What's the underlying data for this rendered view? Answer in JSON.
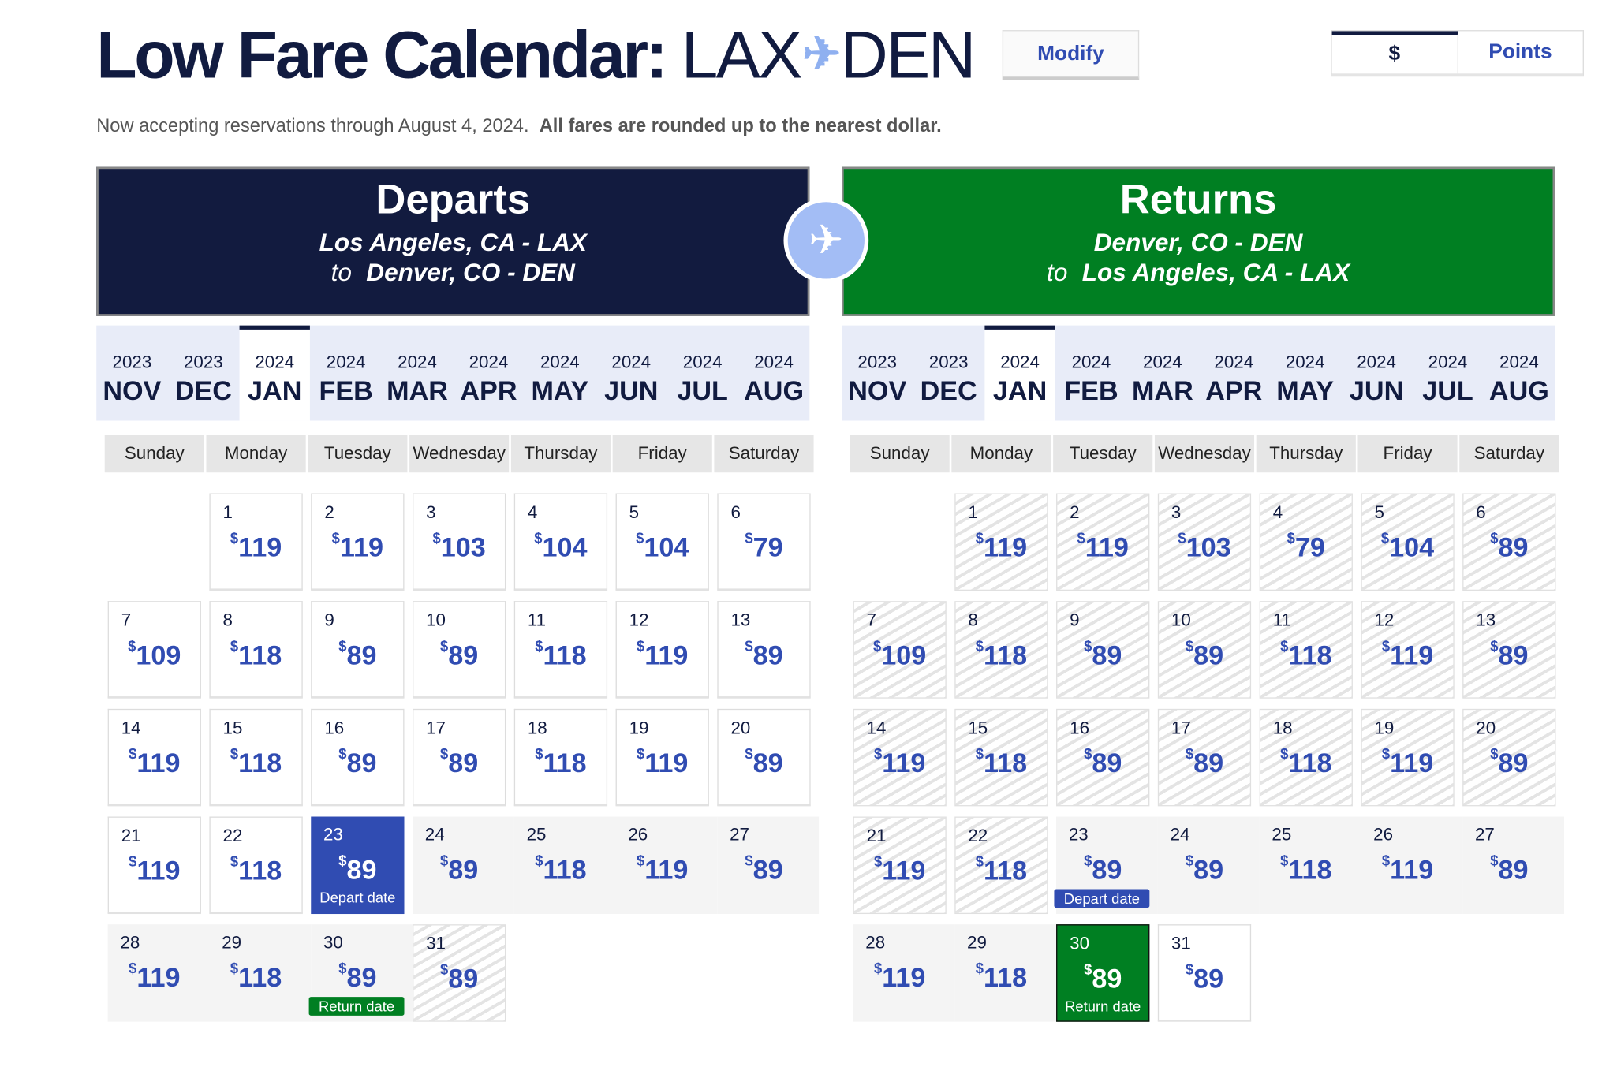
{
  "header": {
    "title": "Low Fare Calendar:",
    "origin": "LAX",
    "destination": "DEN",
    "plane_icon": "airplane-icon",
    "modify_label": "Modify"
  },
  "currency_toggle": {
    "dollar_label": "$",
    "points_label": "Points",
    "selected": "$"
  },
  "notice": {
    "text": "Now accepting reservations through August 4, 2024.",
    "bold": "All fares are rounded up to the nearest dollar."
  },
  "colors": {
    "navy": "#121b3f",
    "green": "#007f22",
    "blue": "#304cb2",
    "light_blue": "#a3bdf5"
  },
  "weekdays": [
    "Sunday",
    "Monday",
    "Tuesday",
    "Wednesday",
    "Thursday",
    "Friday",
    "Saturday"
  ],
  "months": [
    {
      "year": "2023",
      "month": "NOV"
    },
    {
      "year": "2023",
      "month": "DEC"
    },
    {
      "year": "2024",
      "month": "JAN",
      "selected": true
    },
    {
      "year": "2024",
      "month": "FEB"
    },
    {
      "year": "2024",
      "month": "MAR"
    },
    {
      "year": "2024",
      "month": "APR"
    },
    {
      "year": "2024",
      "month": "MAY"
    },
    {
      "year": "2024",
      "month": "JUN"
    },
    {
      "year": "2024",
      "month": "JUL"
    },
    {
      "year": "2024",
      "month": "AUG"
    }
  ],
  "departs": {
    "title": "Departs",
    "from": "Los Angeles, CA - LAX",
    "to_word": "to",
    "to": "Denver, CO - DEN",
    "first_weekday": 1,
    "days": [
      {
        "day": "1",
        "price": "119",
        "state": "available"
      },
      {
        "day": "2",
        "price": "119",
        "state": "available"
      },
      {
        "day": "3",
        "price": "103",
        "state": "available"
      },
      {
        "day": "4",
        "price": "104",
        "state": "available"
      },
      {
        "day": "5",
        "price": "104",
        "state": "available"
      },
      {
        "day": "6",
        "price": "79",
        "state": "available"
      },
      {
        "day": "7",
        "price": "109",
        "state": "available"
      },
      {
        "day": "8",
        "price": "118",
        "state": "available"
      },
      {
        "day": "9",
        "price": "89",
        "state": "available"
      },
      {
        "day": "10",
        "price": "89",
        "state": "available"
      },
      {
        "day": "11",
        "price": "118",
        "state": "available"
      },
      {
        "day": "12",
        "price": "119",
        "state": "available"
      },
      {
        "day": "13",
        "price": "89",
        "state": "available"
      },
      {
        "day": "14",
        "price": "119",
        "state": "available"
      },
      {
        "day": "15",
        "price": "118",
        "state": "available"
      },
      {
        "day": "16",
        "price": "89",
        "state": "available"
      },
      {
        "day": "17",
        "price": "89",
        "state": "available"
      },
      {
        "day": "18",
        "price": "118",
        "state": "available"
      },
      {
        "day": "19",
        "price": "119",
        "state": "available"
      },
      {
        "day": "20",
        "price": "89",
        "state": "available"
      },
      {
        "day": "21",
        "price": "119",
        "state": "available"
      },
      {
        "day": "22",
        "price": "118",
        "state": "available"
      },
      {
        "day": "23",
        "price": "89",
        "state": "sel-depart",
        "label": "Depart date"
      },
      {
        "day": "24",
        "price": "89",
        "state": "range"
      },
      {
        "day": "25",
        "price": "118",
        "state": "range"
      },
      {
        "day": "26",
        "price": "119",
        "state": "range"
      },
      {
        "day": "27",
        "price": "89",
        "state": "range"
      },
      {
        "day": "28",
        "price": "119",
        "state": "range"
      },
      {
        "day": "29",
        "price": "118",
        "state": "range"
      },
      {
        "day": "30",
        "price": "89",
        "state": "range",
        "badge": "Return date",
        "badge_type": "ret"
      },
      {
        "day": "31",
        "price": "89",
        "state": "unavailable"
      }
    ]
  },
  "returns": {
    "title": "Returns",
    "from": "Denver, CO - DEN",
    "to_word": "to",
    "to": "Los Angeles, CA - LAX",
    "first_weekday": 1,
    "days": [
      {
        "day": "1",
        "price": "119",
        "state": "unavailable"
      },
      {
        "day": "2",
        "price": "119",
        "state": "unavailable"
      },
      {
        "day": "3",
        "price": "103",
        "state": "unavailable"
      },
      {
        "day": "4",
        "price": "79",
        "state": "unavailable"
      },
      {
        "day": "5",
        "price": "104",
        "state": "unavailable"
      },
      {
        "day": "6",
        "price": "89",
        "state": "unavailable"
      },
      {
        "day": "7",
        "price": "109",
        "state": "unavailable"
      },
      {
        "day": "8",
        "price": "118",
        "state": "unavailable"
      },
      {
        "day": "9",
        "price": "89",
        "state": "unavailable"
      },
      {
        "day": "10",
        "price": "89",
        "state": "unavailable"
      },
      {
        "day": "11",
        "price": "118",
        "state": "unavailable"
      },
      {
        "day": "12",
        "price": "119",
        "state": "unavailable"
      },
      {
        "day": "13",
        "price": "89",
        "state": "unavailable"
      },
      {
        "day": "14",
        "price": "119",
        "state": "unavailable"
      },
      {
        "day": "15",
        "price": "118",
        "state": "unavailable"
      },
      {
        "day": "16",
        "price": "89",
        "state": "unavailable"
      },
      {
        "day": "17",
        "price": "89",
        "state": "unavailable"
      },
      {
        "day": "18",
        "price": "118",
        "state": "unavailable"
      },
      {
        "day": "19",
        "price": "119",
        "state": "unavailable"
      },
      {
        "day": "20",
        "price": "89",
        "state": "unavailable"
      },
      {
        "day": "21",
        "price": "119",
        "state": "unavailable"
      },
      {
        "day": "22",
        "price": "118",
        "state": "unavailable"
      },
      {
        "day": "23",
        "price": "89",
        "state": "range",
        "badge": "Depart date",
        "badge_type": "dep"
      },
      {
        "day": "24",
        "price": "89",
        "state": "range"
      },
      {
        "day": "25",
        "price": "118",
        "state": "range"
      },
      {
        "day": "26",
        "price": "119",
        "state": "range"
      },
      {
        "day": "27",
        "price": "89",
        "state": "range"
      },
      {
        "day": "28",
        "price": "119",
        "state": "range"
      },
      {
        "day": "29",
        "price": "118",
        "state": "range"
      },
      {
        "day": "30",
        "price": "89",
        "state": "sel-return",
        "label": "Return date"
      },
      {
        "day": "31",
        "price": "89",
        "state": "available"
      }
    ]
  }
}
